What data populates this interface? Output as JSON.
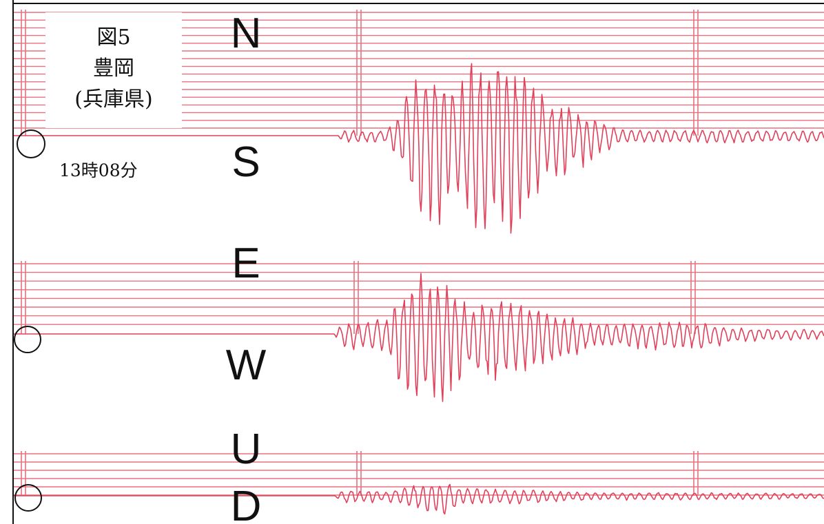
{
  "figure": {
    "label": "図5",
    "station": "豊岡",
    "prefecture": "(兵庫県)",
    "time": "13時08分"
  },
  "components": [
    {
      "key": "ns",
      "top": "N",
      "bottom": "S"
    },
    {
      "key": "ew",
      "top": "E",
      "bottom": "W"
    },
    {
      "key": "ud",
      "top": "U",
      "bottom": "D"
    }
  ],
  "colors": {
    "trace": "#e0405a",
    "grid": "#e8707f",
    "text": "#111111",
    "frame": "#111111"
  }
}
